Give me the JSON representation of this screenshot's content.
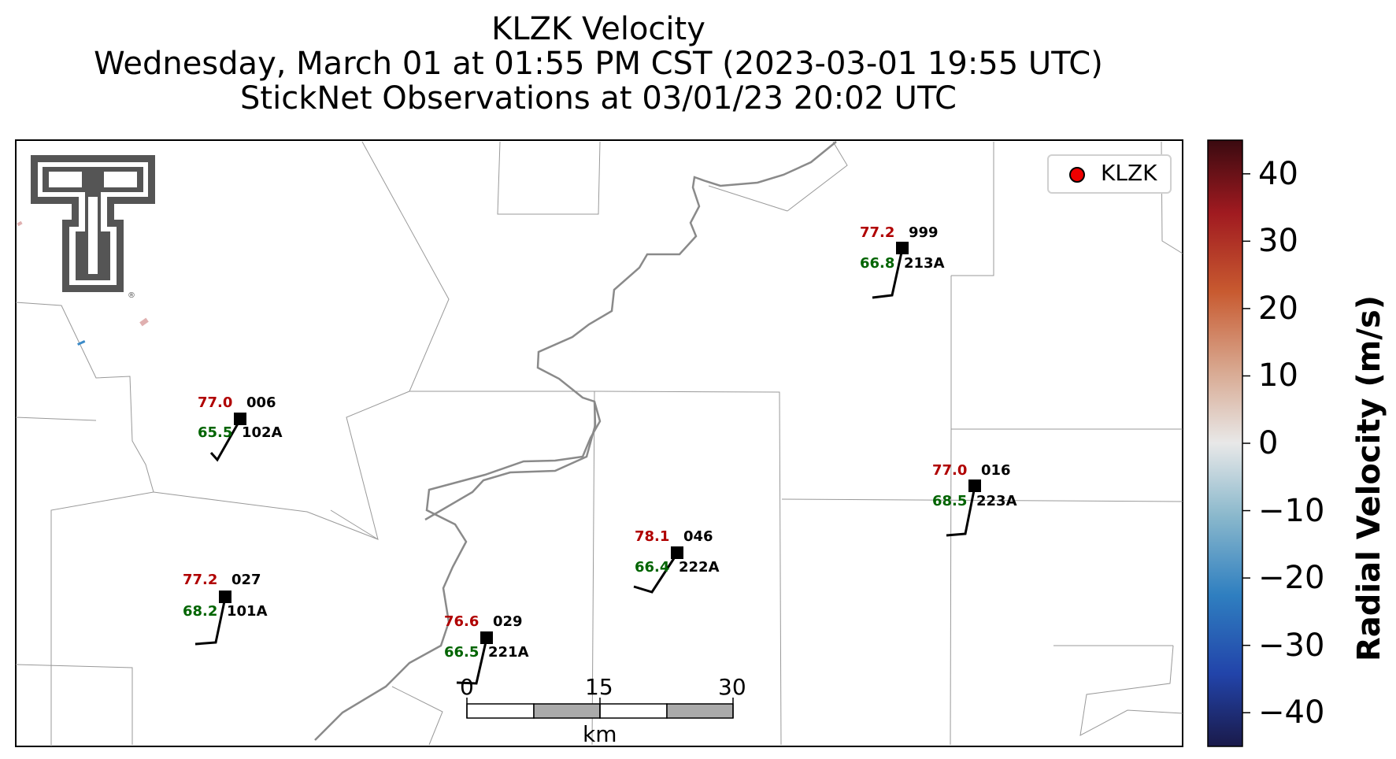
{
  "title": {
    "line1": "KLZK Velocity",
    "line2": "Wednesday, March 01 at 01:55 PM CST (2023-03-01 19:55 UTC)",
    "line3": "StickNet Observations at 03/01/23 20:02 UTC"
  },
  "legend": {
    "label": "KLZK",
    "marker_color": "#ee0000"
  },
  "colorbar": {
    "label": "Radial Velocity (m/s)",
    "ticks": [
      "40",
      "30",
      "20",
      "10",
      "0",
      "−10",
      "−20",
      "−30",
      "−40"
    ],
    "range": [
      -45,
      45
    ],
    "colors": [
      "#1a1a4a",
      "#2244aa",
      "#2f7fc0",
      "#8ab8cc",
      "#e8e8e8",
      "#d8a890",
      "#c85a30",
      "#a01a20",
      "#3a0a10"
    ]
  },
  "stations": [
    {
      "id": "006",
      "temp": "77.0",
      "dew": "65.5",
      "name": "102A"
    },
    {
      "id": "027",
      "temp": "77.2",
      "dew": "68.2",
      "name": "101A"
    },
    {
      "id": "029",
      "temp": "76.6",
      "dew": "66.5",
      "name": "221A"
    },
    {
      "id": "046",
      "temp": "78.1",
      "dew": "66.4",
      "name": "222A"
    },
    {
      "id": "999",
      "temp": "77.2",
      "dew": "66.8",
      "name": "213A"
    },
    {
      "id": "016",
      "temp": "77.0",
      "dew": "68.5",
      "name": "223A"
    }
  ],
  "scale_bar": {
    "ticks": [
      "0",
      "15",
      "30"
    ],
    "unit": "km"
  },
  "logo": {
    "name": "texas-tech-double-t-logo"
  }
}
